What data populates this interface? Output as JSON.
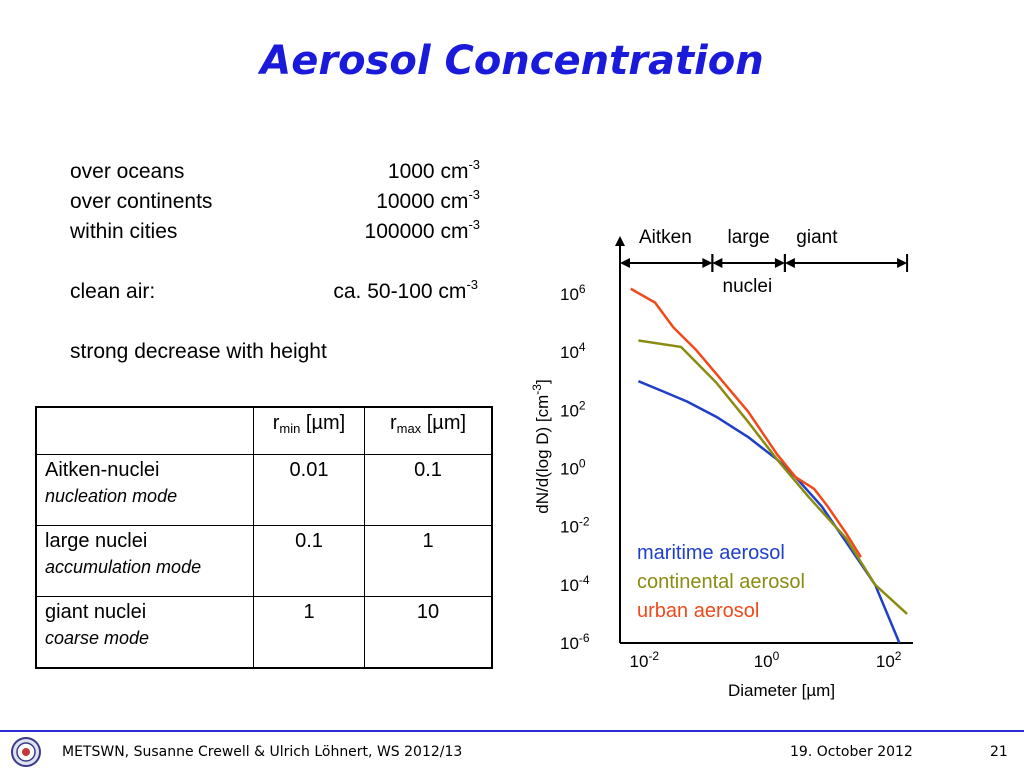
{
  "slide": {
    "title": "Aerosol Concentration",
    "facts": [
      {
        "label": "over oceans",
        "value": "1000 cm",
        "exp": "-3"
      },
      {
        "label": "over continents",
        "value": "10000 cm",
        "exp": "-3"
      },
      {
        "label": "within cities",
        "value": "100000 cm",
        "exp": "-3"
      }
    ],
    "clean_air": {
      "label": "clean air:",
      "value": "ca. 50-100 cm",
      "exp": "-3"
    },
    "decrease_note": "strong decrease with height"
  },
  "table": {
    "header": {
      "rmin_r": "r",
      "rmin_sub": "min",
      "rmin_unit": " [µm]",
      "rmax_r": "r",
      "rmax_sub": "max",
      "rmax_unit": " [µm]"
    },
    "rows": [
      {
        "name": "Aitken-nuclei",
        "mode": "nucleation mode",
        "rmin": "0.01",
        "rmax": "0.1"
      },
      {
        "name": "large nuclei",
        "mode": "accumulation mode",
        "rmin": "0.1",
        "rmax": "1"
      },
      {
        "name": "giant nuclei",
        "mode": "coarse mode",
        "rmin": "1",
        "rmax": "10"
      }
    ]
  },
  "chart_data": {
    "type": "line",
    "xlabel": "Diameter [µm]",
    "ylabel": "dN/d(log D) [cm-3]",
    "xscale": "log",
    "yscale": "log",
    "xlim": [
      0.004,
      250
    ],
    "ylim": [
      1e-06,
      3000000.0
    ],
    "xticks": [
      {
        "value": 0.01,
        "base": "10",
        "exp": "-2"
      },
      {
        "value": 1,
        "base": "10",
        "exp": "0"
      },
      {
        "value": 100,
        "base": "10",
        "exp": "2"
      }
    ],
    "yticks": [
      {
        "value": 1000000,
        "base": "10",
        "exp": "6"
      },
      {
        "value": 10000,
        "base": "10",
        "exp": "4"
      },
      {
        "value": 100,
        "base": "10",
        "exp": "2"
      },
      {
        "value": 1,
        "base": "10",
        "exp": "0"
      },
      {
        "value": 0.01,
        "base": "10",
        "exp": "-2"
      },
      {
        "value": 0.0001,
        "base": "10",
        "exp": "-4"
      },
      {
        "value": 1e-06,
        "base": "10",
        "exp": "-6"
      }
    ],
    "ranges": [
      {
        "label": "Aitken",
        "from": 0.004,
        "to": 0.13
      },
      {
        "label": "large",
        "from": 0.13,
        "to": 2.0
      },
      {
        "label": "giant",
        "from": 2.0,
        "to": 200
      }
    ],
    "range_sublabel": "nuclei",
    "legend_placement": "lower-left",
    "series": [
      {
        "name": "maritime aerosol",
        "color": "#1f3fc8",
        "x": [
          0.008,
          0.02,
          0.05,
          0.15,
          0.5,
          1.5,
          3,
          8,
          20,
          60,
          150
        ],
        "y": [
          1000,
          450,
          200,
          60,
          12,
          2,
          0.5,
          0.05,
          0.003,
          0.0001,
          1e-06
        ]
      },
      {
        "name": "continental aerosol",
        "color": "#8b8b12",
        "x": [
          0.008,
          0.04,
          0.15,
          0.5,
          1.5,
          5,
          20,
          60,
          200
        ],
        "y": [
          25000,
          15000,
          900,
          40,
          2,
          0.1,
          0.004,
          0.0001,
          1e-05
        ]
      },
      {
        "name": "urban aerosol",
        "color": "#f04a1a",
        "x": [
          0.006,
          0.015,
          0.03,
          0.07,
          0.15,
          0.5,
          1.5,
          3,
          6,
          10,
          20,
          35
        ],
        "y": [
          1500000,
          500000,
          70000,
          12000,
          1800,
          90,
          3,
          0.5,
          0.2,
          0.05,
          0.006,
          0.0009
        ]
      }
    ]
  },
  "footer": {
    "left": "METSWN, Susanne Crewell & Ulrich Löhnert,  WS 2012/13",
    "date": "19. October 2012",
    "page": "21"
  }
}
